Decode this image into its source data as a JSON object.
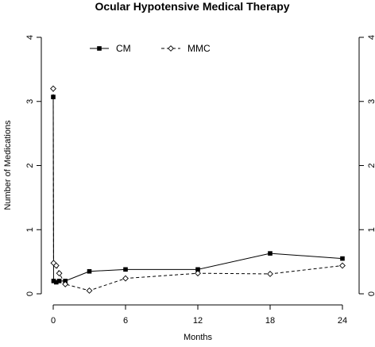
{
  "chart_data": {
    "type": "line",
    "title": "Ocular Hypotensive Medical Therapy",
    "xlabel": "Months",
    "ylabel": "Number of Medications",
    "xlim": [
      0,
      24
    ],
    "ylim": [
      0,
      4
    ],
    "x_ticks": [
      0,
      6,
      12,
      18,
      24
    ],
    "y_ticks": [
      0,
      1,
      2,
      3,
      4
    ],
    "grid": false,
    "legend_position": "top-left",
    "series": [
      {
        "name": "CM",
        "line_style": "solid",
        "marker": "filled-square",
        "color": "#000000",
        "points": [
          {
            "x": 0,
            "y": 3.07
          },
          {
            "x": 0.03,
            "y": 0.2
          },
          {
            "x": 0.25,
            "y": 0.18
          },
          {
            "x": 0.5,
            "y": 0.2
          },
          {
            "x": 1,
            "y": 0.2
          },
          {
            "x": 3,
            "y": 0.35
          },
          {
            "x": 6,
            "y": 0.38
          },
          {
            "x": 12,
            "y": 0.38
          },
          {
            "x": 18,
            "y": 0.63
          },
          {
            "x": 24,
            "y": 0.55
          }
        ]
      },
      {
        "name": "MMC",
        "line_style": "dashed",
        "marker": "open-diamond",
        "color": "#000000",
        "points": [
          {
            "x": 0,
            "y": 3.2
          },
          {
            "x": 0.03,
            "y": 0.48
          },
          {
            "x": 0.25,
            "y": 0.44
          },
          {
            "x": 0.5,
            "y": 0.32
          },
          {
            "x": 1,
            "y": 0.15
          },
          {
            "x": 3,
            "y": 0.05
          },
          {
            "x": 6,
            "y": 0.24
          },
          {
            "x": 12,
            "y": 0.32
          },
          {
            "x": 18,
            "y": 0.31
          },
          {
            "x": 24,
            "y": 0.44
          }
        ]
      }
    ]
  }
}
